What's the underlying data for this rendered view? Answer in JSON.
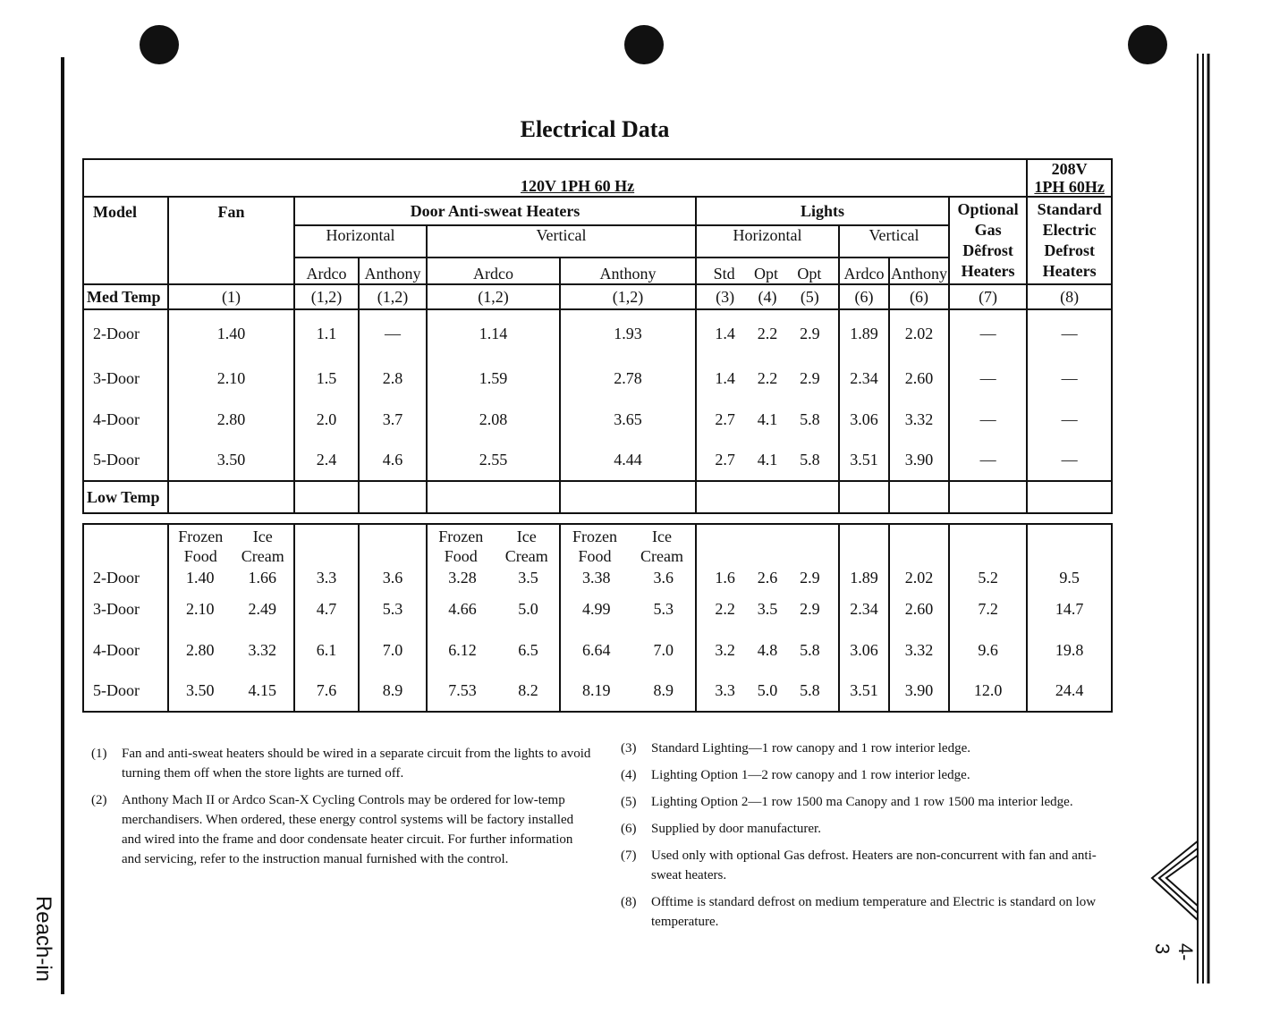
{
  "title": "Electrical Data",
  "side_label": "Reach-in",
  "page_number": "4-3",
  "table": {
    "voltage_main": "120V 1PH 60 Hz",
    "voltage_alt_1": "208V",
    "voltage_alt_2": "1PH 60Hz",
    "h_model": "Model",
    "h_fan": "Fan",
    "h_door": "Door Anti-sweat Heaters",
    "h_lights": "Lights",
    "h_gas": [
      "Optional",
      "Gas",
      "Dêfrost",
      "Heaters"
    ],
    "h_elec": [
      "Standard",
      "Electric",
      "Defrost",
      "Heaters"
    ],
    "h_horizontal": "Horizontal",
    "h_vertical": "Vertical",
    "h_ardco": "Ardco",
    "h_anthony": "Anthony",
    "h_std": "Std",
    "h_opt": "Opt",
    "med_label": "Med Temp",
    "med_notes": {
      "fan": "(1)",
      "h_ardco": "(1,2)",
      "h_anthony": "(1,2)",
      "v_ardco": "(1,2)",
      "v_anthony": "(1,2)",
      "std": "(3)",
      "opt4": "(4)",
      "opt5": "(5)",
      "lv_ardco": "(6)",
      "lv_anthony": "(6)",
      "gas": "(7)",
      "elec": "(8)"
    },
    "med_rows": [
      {
        "model": "2-Door",
        "fan": "1.40",
        "h_ardco": "1.1",
        "h_anthony": "—",
        "v_ardco": "1.14",
        "v_anthony": "1.93",
        "std": "1.4",
        "opt4": "2.2",
        "opt5": "2.9",
        "lv_ardco": "1.89",
        "lv_anthony": "2.02",
        "gas": "—",
        "elec": "—"
      },
      {
        "model": "3-Door",
        "fan": "2.10",
        "h_ardco": "1.5",
        "h_anthony": "2.8",
        "v_ardco": "1.59",
        "v_anthony": "2.78",
        "std": "1.4",
        "opt4": "2.2",
        "opt5": "2.9",
        "lv_ardco": "2.34",
        "lv_anthony": "2.60",
        "gas": "—",
        "elec": "—"
      },
      {
        "model": "4-Door",
        "fan": "2.80",
        "h_ardco": "2.0",
        "h_anthony": "3.7",
        "v_ardco": "2.08",
        "v_anthony": "3.65",
        "std": "2.7",
        "opt4": "4.1",
        "opt5": "5.8",
        "lv_ardco": "3.06",
        "lv_anthony": "3.32",
        "gas": "—",
        "elec": "—"
      },
      {
        "model": "5-Door",
        "fan": "3.50",
        "h_ardco": "2.4",
        "h_anthony": "4.6",
        "v_ardco": "2.55",
        "v_anthony": "4.44",
        "std": "2.7",
        "opt4": "4.1",
        "opt5": "5.8",
        "lv_ardco": "3.51",
        "lv_anthony": "3.90",
        "gas": "—",
        "elec": "—"
      }
    ],
    "low_label": "Low Temp",
    "low_sub": {
      "frozen_1": "Frozen",
      "frozen_2": "Food",
      "ice_1": "Ice",
      "ice_2": "Cream"
    },
    "low_rows": [
      {
        "model": "2-Door",
        "fan_ff": "1.40",
        "fan_ic": "1.66",
        "h_ardco": "3.3",
        "h_anthony": "3.6",
        "v_ardco_ff": "3.28",
        "v_ardco_ic": "3.5",
        "v_anthony_ff": "3.38",
        "v_anthony_ic": "3.6",
        "std": "1.6",
        "opt4": "2.6",
        "opt5": "2.9",
        "lv_ardco": "1.89",
        "lv_anthony": "2.02",
        "gas": "5.2",
        "elec": "9.5"
      },
      {
        "model": "3-Door",
        "fan_ff": "2.10",
        "fan_ic": "2.49",
        "h_ardco": "4.7",
        "h_anthony": "5.3",
        "v_ardco_ff": "4.66",
        "v_ardco_ic": "5.0",
        "v_anthony_ff": "4.99",
        "v_anthony_ic": "5.3",
        "std": "2.2",
        "opt4": "3.5",
        "opt5": "2.9",
        "lv_ardco": "2.34",
        "lv_anthony": "2.60",
        "gas": "7.2",
        "elec": "14.7"
      },
      {
        "model": "4-Door",
        "fan_ff": "2.80",
        "fan_ic": "3.32",
        "h_ardco": "6.1",
        "h_anthony": "7.0",
        "v_ardco_ff": "6.12",
        "v_ardco_ic": "6.5",
        "v_anthony_ff": "6.64",
        "v_anthony_ic": "7.0",
        "std": "3.2",
        "opt4": "4.8",
        "opt5": "5.8",
        "lv_ardco": "3.06",
        "lv_anthony": "3.32",
        "gas": "9.6",
        "elec": "19.8"
      },
      {
        "model": "5-Door",
        "fan_ff": "3.50",
        "fan_ic": "4.15",
        "h_ardco": "7.6",
        "h_anthony": "8.9",
        "v_ardco_ff": "7.53",
        "v_ardco_ic": "8.2",
        "v_anthony_ff": "8.19",
        "v_anthony_ic": "8.9",
        "std": "3.3",
        "opt4": "5.0",
        "opt5": "5.8",
        "lv_ardco": "3.51",
        "lv_anthony": "3.90",
        "gas": "12.0",
        "elec": "24.4"
      }
    ]
  },
  "footnotes_left": [
    {
      "num": "(1)",
      "text": "Fan and anti-sweat heaters should be wired in a separate circuit from the lights to avoid turning them off when the store lights are turned off."
    },
    {
      "num": "(2)",
      "text": "Anthony Mach II or Ardco Scan-X Cycling Controls may be ordered for low-temp merchandisers.  When ordered, these energy control systems will be factory installed and wired into the frame and door condensate heater circuit. For further information and servicing, refer to the instruction manual furnished with the control."
    }
  ],
  "footnotes_right": [
    {
      "num": "(3)",
      "text": "Standard Lighting—1 row canopy and 1 row interior ledge."
    },
    {
      "num": "(4)",
      "text": "Lighting Option 1—2 row canopy and 1 row interior ledge."
    },
    {
      "num": "(5)",
      "text": "Lighting Option 2—1 row 1500 ma Canopy and 1 row 1500 ma interior ledge."
    },
    {
      "num": "(6)",
      "text": "Supplied by door manufacturer."
    },
    {
      "num": "(7)",
      "text": "Used only with optional Gas defrost. Heaters are non-concurrent with fan and anti-sweat heaters."
    },
    {
      "num": "(8)",
      "text": "Offtime is standard defrost on medium temperature and Electric is standard on low temperature."
    }
  ]
}
